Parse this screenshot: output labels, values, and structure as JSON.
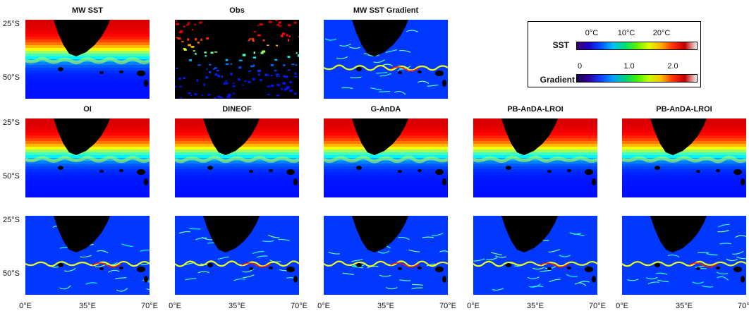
{
  "chart_data": {
    "type": "heatmap",
    "panels": [
      {
        "id": "mw-sst",
        "title": "MW SST",
        "kind": "sst"
      },
      {
        "id": "obs",
        "title": "Obs",
        "kind": "obs"
      },
      {
        "id": "mw-sst-gradient",
        "title": "MW SST Gradient",
        "kind": "grad"
      },
      {
        "id": "oi",
        "title": "OI",
        "kind": "sst"
      },
      {
        "id": "dineof",
        "title": "DINEOF",
        "kind": "sst"
      },
      {
        "id": "g-anda",
        "title": "G-AnDA",
        "kind": "sst"
      },
      {
        "id": "pb-anda-lroi-1",
        "title": "PB-AnDA-LROI",
        "kind": "sst"
      },
      {
        "id": "pb-anda-lroi-2",
        "title": "PB-AnDA-LROI",
        "kind": "sst"
      },
      {
        "id": "oi-grad",
        "title": "",
        "kind": "grad"
      },
      {
        "id": "dineof-grad",
        "title": "",
        "kind": "grad"
      },
      {
        "id": "g-anda-grad",
        "title": "",
        "kind": "grad"
      },
      {
        "id": "pb-anda-lroi-1-grad",
        "title": "",
        "kind": "grad"
      },
      {
        "id": "pb-anda-lroi-2-grad",
        "title": "",
        "kind": "grad"
      }
    ],
    "y_ticks": [
      "25°S",
      "50°S"
    ],
    "x_ticks": [
      "0°E",
      "35°E",
      "70°E"
    ],
    "colorbars": [
      {
        "name": "SST",
        "ticks": [
          "0°C",
          "10°C",
          "20°C"
        ],
        "tick_values": [
          0,
          10,
          20
        ],
        "range": [
          -5,
          30
        ]
      },
      {
        "name": "Gradient",
        "ticks": [
          "0",
          "1.0",
          "2.0"
        ],
        "tick_values": [
          0,
          1.0,
          2.0
        ],
        "range": [
          0,
          2.5
        ]
      }
    ],
    "land_color": "#000000"
  }
}
